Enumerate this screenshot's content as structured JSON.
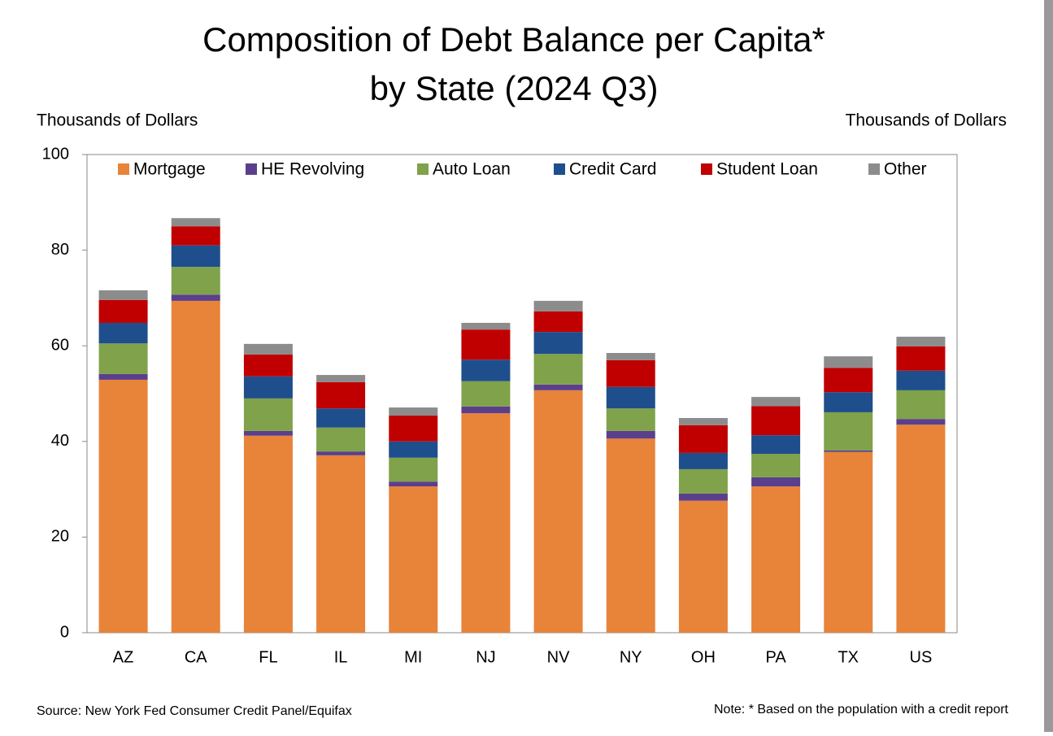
{
  "chart_data": {
    "type": "stacked_bar",
    "title_lines": [
      "Composition of Debt Balance per Capita*",
      "by State (2024 Q3)"
    ],
    "y_label": "Thousands of Dollars",
    "y2_label": "Thousands of Dollars",
    "source": "Source: New York Fed Consumer Credit Panel/Equifax",
    "note": "Note: * Based on the population with a credit report",
    "categories": [
      "AZ",
      "CA",
      "FL",
      "IL",
      "MI",
      "NJ",
      "NV",
      "NY",
      "OH",
      "PA",
      "TX",
      "US"
    ],
    "series": [
      {
        "name": "Mortgage",
        "color": "#e8833a",
        "values": [
          52.9,
          69.4,
          41.2,
          37.1,
          30.6,
          45.9,
          50.7,
          40.6,
          27.6,
          30.6,
          37.8,
          43.5
        ]
      },
      {
        "name": "HE Revolving",
        "color": "#5b3f8c",
        "values": [
          1.2,
          1.3,
          1.0,
          0.8,
          1.0,
          1.4,
          1.2,
          1.6,
          1.5,
          1.9,
          0.3,
          1.2
        ]
      },
      {
        "name": "Auto Loan",
        "color": "#7fa24a",
        "values": [
          6.4,
          5.8,
          6.8,
          5.0,
          5.0,
          5.3,
          6.4,
          4.7,
          5.1,
          4.9,
          8.0,
          6.0
        ]
      },
      {
        "name": "Credit Card",
        "color": "#1f4e8c",
        "values": [
          4.3,
          4.5,
          4.6,
          4.0,
          3.4,
          4.5,
          4.6,
          4.5,
          3.4,
          3.9,
          4.2,
          4.1
        ]
      },
      {
        "name": "Student Loan",
        "color": "#c00000",
        "values": [
          4.8,
          4.0,
          4.6,
          5.5,
          5.4,
          6.3,
          4.3,
          5.6,
          5.8,
          6.1,
          5.1,
          5.1
        ]
      },
      {
        "name": "Other",
        "color": "#8c8c8c",
        "values": [
          2.0,
          1.7,
          2.2,
          1.5,
          1.7,
          1.4,
          2.2,
          1.5,
          1.5,
          1.9,
          2.4,
          2.0
        ]
      }
    ],
    "ylim": [
      0,
      100
    ],
    "yticks": [
      0,
      20,
      40,
      60,
      80,
      100
    ],
    "legend": "top"
  }
}
